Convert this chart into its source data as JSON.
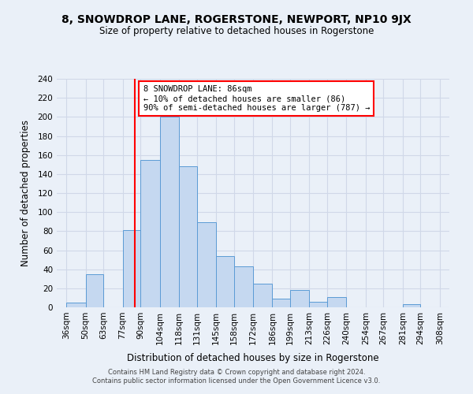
{
  "title": "8, SNOWDROP LANE, ROGERSTONE, NEWPORT, NP10 9JX",
  "subtitle": "Size of property relative to detached houses in Rogerstone",
  "xlabel": "Distribution of detached houses by size in Rogerstone",
  "ylabel": "Number of detached properties",
  "footer_line1": "Contains HM Land Registry data © Crown copyright and database right 2024.",
  "footer_line2": "Contains public sector information licensed under the Open Government Licence v3.0.",
  "bin_labels": [
    "36sqm",
    "50sqm",
    "63sqm",
    "77sqm",
    "90sqm",
    "104sqm",
    "118sqm",
    "131sqm",
    "145sqm",
    "158sqm",
    "172sqm",
    "186sqm",
    "199sqm",
    "213sqm",
    "226sqm",
    "240sqm",
    "254sqm",
    "267sqm",
    "281sqm",
    "294sqm",
    "308sqm"
  ],
  "bin_edges": [
    36,
    50,
    63,
    77,
    90,
    104,
    118,
    131,
    145,
    158,
    172,
    186,
    199,
    213,
    226,
    240,
    254,
    267,
    281,
    294,
    308
  ],
  "bar_heights": [
    5,
    35,
    0,
    81,
    155,
    200,
    148,
    89,
    54,
    43,
    25,
    9,
    18,
    6,
    11,
    0,
    0,
    0,
    3,
    0,
    0
  ],
  "bar_color": "#c5d8f0",
  "bar_edge_color": "#5b9bd5",
  "reference_line_x": 86,
  "reference_line_color": "red",
  "annotation_text": "8 SNOWDROP LANE: 86sqm\n← 10% of detached houses are smaller (86)\n90% of semi-detached houses are larger (787) →",
  "annotation_box_color": "white",
  "annotation_box_edge_color": "red",
  "ylim": [
    0,
    240
  ],
  "yticks": [
    0,
    20,
    40,
    60,
    80,
    100,
    120,
    140,
    160,
    180,
    200,
    220,
    240
  ],
  "grid_color": "#d0d8e8",
  "background_color": "#eaf0f8",
  "plot_bg_color": "#eaf0f8"
}
